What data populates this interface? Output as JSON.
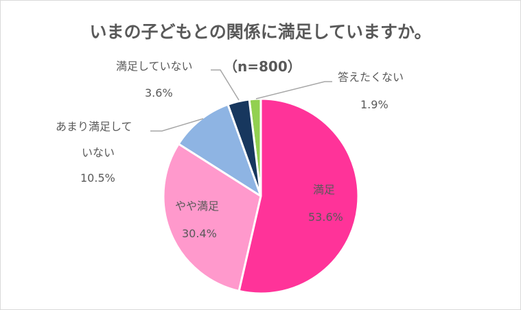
{
  "chart_data": {
    "type": "pie",
    "title": "いまの子どもとの関係に満足していますか。",
    "annotation": "（n=800）",
    "start_angle": "top",
    "direction": "clockwise",
    "slices": [
      {
        "label": "満足",
        "value": 53.6,
        "display": "53.6%",
        "color": "#FF3399"
      },
      {
        "label": "やや満足",
        "value": 30.4,
        "display": "30.4%",
        "color": "#FF99CC"
      },
      {
        "label": "あまり満足していない",
        "label_lines": [
          "あまり満足して",
          "いない"
        ],
        "value": 10.5,
        "display": "10.5%",
        "color": "#8EB4E3"
      },
      {
        "label": "満足していない",
        "value": 3.6,
        "display": "3.6%",
        "color": "#17375E"
      },
      {
        "label": "答えたくない",
        "value": 1.9,
        "display": "1.9%",
        "color": "#92D050"
      }
    ]
  }
}
